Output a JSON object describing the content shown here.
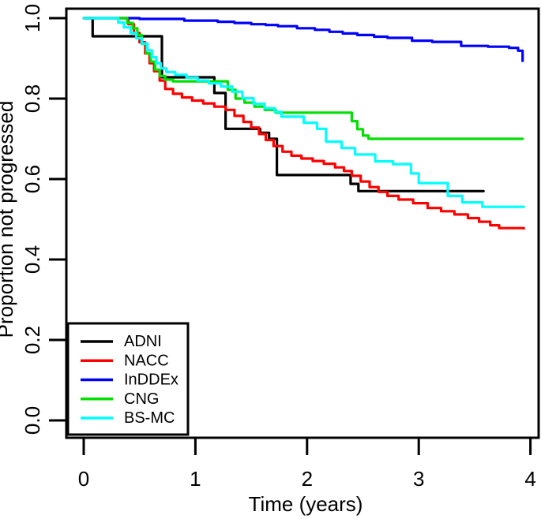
{
  "figure": {
    "background": "#ffffff",
    "axis_color": "#000000"
  },
  "chart_data": {
    "type": "line",
    "subtype": "step-survival-curves",
    "title": "",
    "xlabel": "Time (years)",
    "ylabel": "Proportion not progressed",
    "xlim": [
      0,
      4
    ],
    "ylim": [
      0.0,
      1.0
    ],
    "grid": false,
    "legend_position": "bottom-left",
    "x_tick_labels": [
      "0",
      "1",
      "2",
      "3",
      "4"
    ],
    "y_tick_labels": [
      "0.0",
      "0.2",
      "0.4",
      "0.6",
      "0.8",
      "1.0"
    ],
    "series": [
      {
        "name": "ADNI",
        "color": "#000000",
        "points": [
          [
            0,
            1.0
          ],
          [
            0.08,
            0.955
          ],
          [
            0.7,
            0.853
          ],
          [
            1.17,
            0.814
          ],
          [
            1.27,
            0.725
          ],
          [
            1.58,
            0.715
          ],
          [
            1.66,
            0.7
          ],
          [
            1.73,
            0.61
          ],
          [
            2.39,
            0.588
          ],
          [
            2.46,
            0.57
          ],
          [
            3.58,
            0.57
          ]
        ]
      },
      {
        "name": "NACC",
        "color": "#FF0000",
        "points": [
          [
            0,
            1.0
          ],
          [
            0.35,
            1.0
          ],
          [
            0.4,
            0.985
          ],
          [
            0.45,
            0.963
          ],
          [
            0.5,
            0.94
          ],
          [
            0.55,
            0.912
          ],
          [
            0.59,
            0.888
          ],
          [
            0.63,
            0.868
          ],
          [
            0.68,
            0.845
          ],
          [
            0.73,
            0.824
          ],
          [
            0.8,
            0.812
          ],
          [
            0.88,
            0.803
          ],
          [
            0.97,
            0.795
          ],
          [
            1.07,
            0.788
          ],
          [
            1.17,
            0.78
          ],
          [
            1.27,
            0.772
          ],
          [
            1.35,
            0.757
          ],
          [
            1.43,
            0.742
          ],
          [
            1.5,
            0.728
          ],
          [
            1.57,
            0.712
          ],
          [
            1.63,
            0.697
          ],
          [
            1.7,
            0.682
          ],
          [
            1.78,
            0.668
          ],
          [
            1.86,
            0.658
          ],
          [
            1.95,
            0.651
          ],
          [
            2.05,
            0.645
          ],
          [
            2.15,
            0.638
          ],
          [
            2.25,
            0.629
          ],
          [
            2.33,
            0.62
          ],
          [
            2.4,
            0.608
          ],
          [
            2.48,
            0.594
          ],
          [
            2.56,
            0.58
          ],
          [
            2.64,
            0.568
          ],
          [
            2.72,
            0.558
          ],
          [
            2.82,
            0.549
          ],
          [
            2.95,
            0.54
          ],
          [
            3.08,
            0.528
          ],
          [
            3.2,
            0.52
          ],
          [
            3.32,
            0.512
          ],
          [
            3.44,
            0.503
          ],
          [
            3.54,
            0.494
          ],
          [
            3.64,
            0.485
          ],
          [
            3.72,
            0.478
          ],
          [
            3.94,
            0.477
          ]
        ]
      },
      {
        "name": "InDDEx",
        "color": "#0000FF",
        "points": [
          [
            0,
            1.0
          ],
          [
            0.5,
            0.998
          ],
          [
            0.9,
            0.994
          ],
          [
            1.2,
            0.991
          ],
          [
            1.35,
            0.988
          ],
          [
            1.5,
            0.985
          ],
          [
            1.63,
            0.983
          ],
          [
            1.74,
            0.98
          ],
          [
            1.91,
            0.975
          ],
          [
            2.07,
            0.971
          ],
          [
            2.2,
            0.966
          ],
          [
            2.32,
            0.962
          ],
          [
            2.45,
            0.958
          ],
          [
            2.6,
            0.954
          ],
          [
            2.72,
            0.951
          ],
          [
            2.94,
            0.944
          ],
          [
            3.12,
            0.941
          ],
          [
            3.38,
            0.931
          ],
          [
            3.62,
            0.929
          ],
          [
            3.81,
            0.926
          ],
          [
            3.89,
            0.919
          ],
          [
            3.93,
            0.894
          ]
        ]
      },
      {
        "name": "CNG",
        "color": "#00E000",
        "points": [
          [
            0,
            1.0
          ],
          [
            0.33,
            1.0
          ],
          [
            0.39,
            0.988
          ],
          [
            0.44,
            0.975
          ],
          [
            0.48,
            0.958
          ],
          [
            0.52,
            0.936
          ],
          [
            0.56,
            0.912
          ],
          [
            0.6,
            0.892
          ],
          [
            0.64,
            0.872
          ],
          [
            0.68,
            0.856
          ],
          [
            0.73,
            0.847
          ],
          [
            0.8,
            0.843
          ],
          [
            1.29,
            0.822
          ],
          [
            1.36,
            0.8
          ],
          [
            1.44,
            0.79
          ],
          [
            1.53,
            0.78
          ],
          [
            1.62,
            0.772
          ],
          [
            1.72,
            0.765
          ],
          [
            2.4,
            0.744
          ],
          [
            2.45,
            0.724
          ],
          [
            2.5,
            0.708
          ],
          [
            2.55,
            0.7
          ],
          [
            3.93,
            0.7
          ]
        ]
      },
      {
        "name": "BS-MC",
        "color": "#00FFFF",
        "points": [
          [
            0,
            1.0
          ],
          [
            0.26,
            1.0
          ],
          [
            0.31,
            0.989
          ],
          [
            0.36,
            0.977
          ],
          [
            0.42,
            0.963
          ],
          [
            0.47,
            0.95
          ],
          [
            0.52,
            0.937
          ],
          [
            0.57,
            0.92
          ],
          [
            0.61,
            0.903
          ],
          [
            0.65,
            0.888
          ],
          [
            0.69,
            0.875
          ],
          [
            0.74,
            0.866
          ],
          [
            0.82,
            0.859
          ],
          [
            0.92,
            0.852
          ],
          [
            1.02,
            0.845
          ],
          [
            1.12,
            0.838
          ],
          [
            1.23,
            0.83
          ],
          [
            1.33,
            0.817
          ],
          [
            1.42,
            0.801
          ],
          [
            1.52,
            0.787
          ],
          [
            1.62,
            0.776
          ],
          [
            1.71,
            0.767
          ],
          [
            1.77,
            0.755
          ],
          [
            1.97,
            0.74
          ],
          [
            2.09,
            0.725
          ],
          [
            2.17,
            0.693
          ],
          [
            2.31,
            0.677
          ],
          [
            2.43,
            0.661
          ],
          [
            2.61,
            0.644
          ],
          [
            2.77,
            0.637
          ],
          [
            2.93,
            0.614
          ],
          [
            3.0,
            0.59
          ],
          [
            3.26,
            0.558
          ],
          [
            3.39,
            0.542
          ],
          [
            3.57,
            0.531
          ],
          [
            3.94,
            0.531
          ]
        ]
      }
    ]
  }
}
